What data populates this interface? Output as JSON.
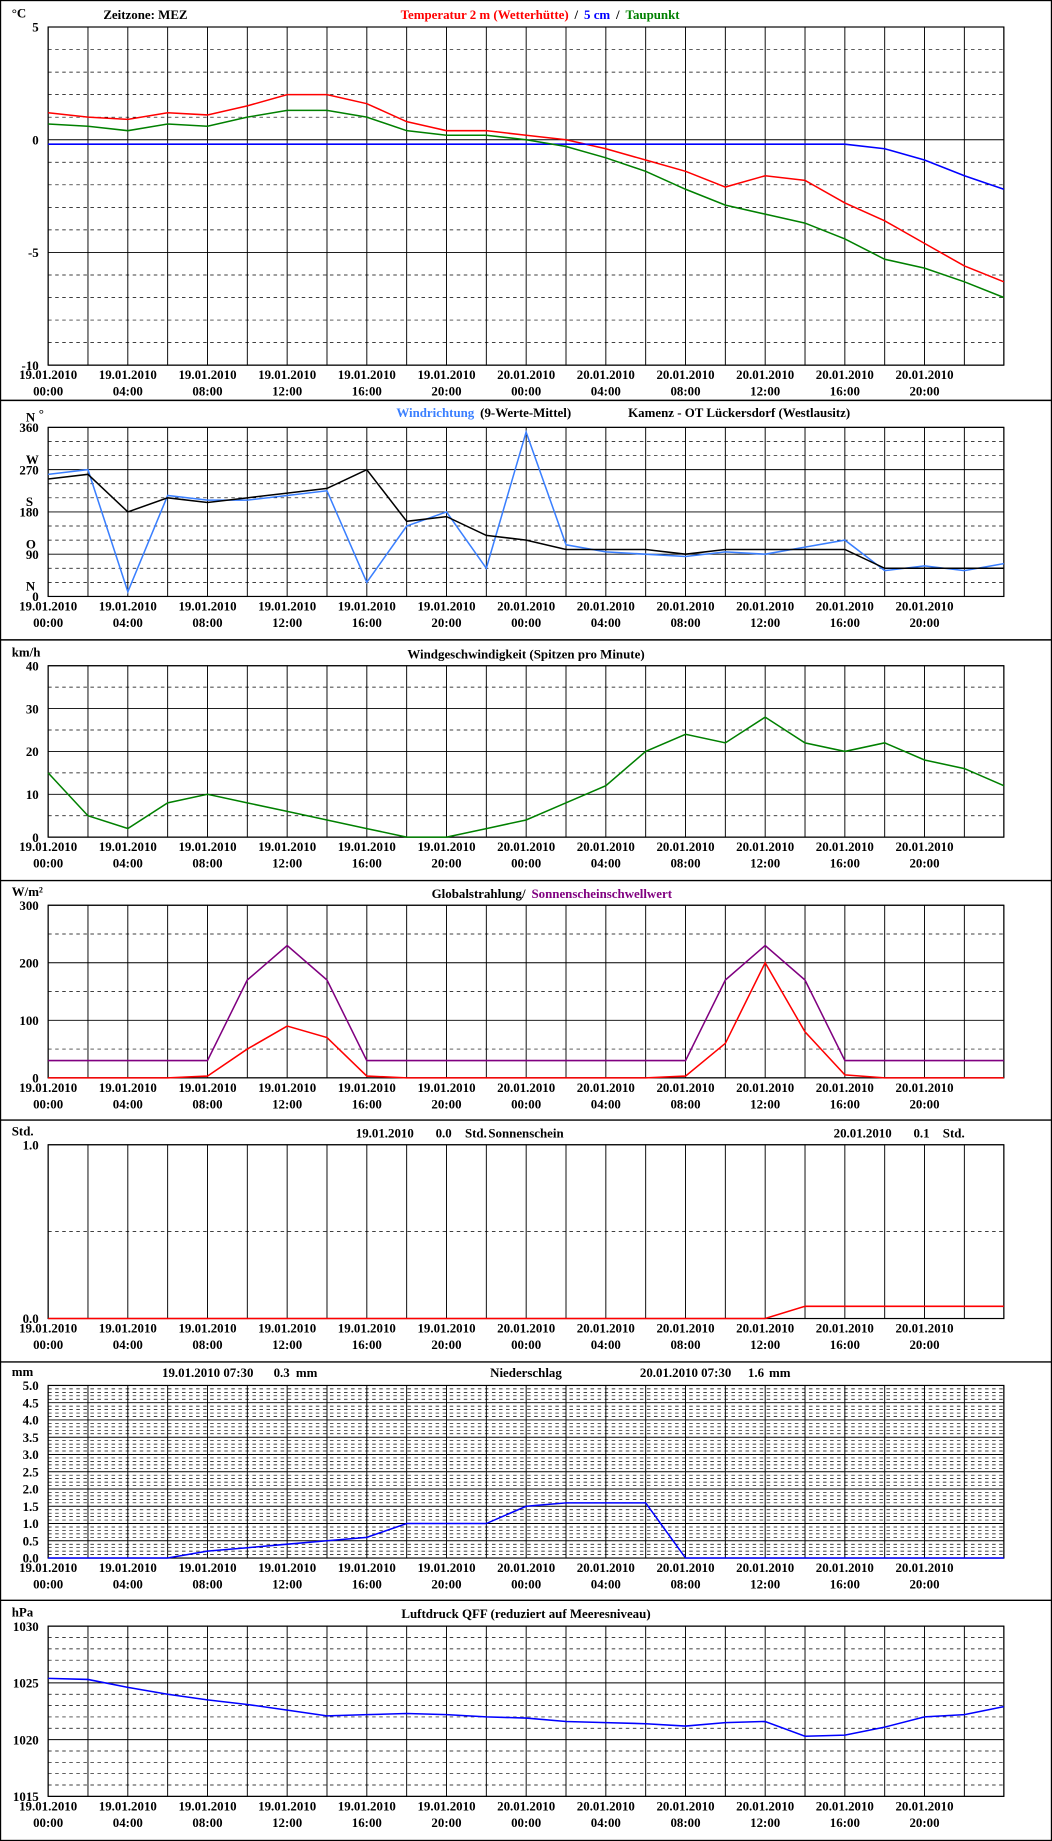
{
  "chart_data": [
    {
      "type": "line",
      "unit": "°C",
      "annotations": [
        "Zeitzone: MEZ"
      ],
      "legend_separator": "/",
      "x": [
        "19.01.2010 00:00",
        "19.01.2010 02:00",
        "19.01.2010 04:00",
        "19.01.2010 06:00",
        "19.01.2010 08:00",
        "19.01.2010 10:00",
        "19.01.2010 12:00",
        "19.01.2010 14:00",
        "19.01.2010 16:00",
        "19.01.2010 18:00",
        "19.01.2010 20:00",
        "19.01.2010 22:00",
        "20.01.2010 00:00",
        "20.01.2010 02:00",
        "20.01.2010 04:00",
        "20.01.2010 06:00",
        "20.01.2010 08:00",
        "20.01.2010 10:00",
        "20.01.2010 12:00",
        "20.01.2010 14:00",
        "20.01.2010 16:00",
        "20.01.2010 18:00",
        "20.01.2010 20:00",
        "20.01.2010 22:00",
        "20.01.2010 23:59"
      ],
      "xlim": [
        "19.01.2010 00:00",
        "20.01.2010 23:59"
      ],
      "xticks": [
        "19.01.2010 00:00",
        "19.01.2010 04:00",
        "19.01.2010 08:00",
        "19.01.2010 12:00",
        "19.01.2010 16:00",
        "19.01.2010 20:00",
        "20.01.2010 00:00",
        "20.01.2010 04:00",
        "20.01.2010 08:00",
        "20.01.2010 12:00",
        "20.01.2010 16:00",
        "20.01.2010 20:00"
      ],
      "ylim": [
        -10,
        5
      ],
      "yticks": [
        -10,
        -5,
        0,
        5
      ],
      "yminor": [
        -9,
        -8,
        -7,
        -6,
        -4,
        -3,
        -2,
        -1,
        1,
        2,
        3,
        4
      ],
      "grid": true,
      "series": [
        {
          "name": "Temperatur 2 m (Wetterhütte)",
          "color": "#ff0000",
          "values": [
            1.2,
            1.0,
            0.9,
            1.2,
            1.1,
            1.5,
            2.0,
            2.0,
            1.6,
            0.8,
            0.4,
            0.4,
            0.2,
            0,
            -0.4,
            -0.9,
            -1.4,
            -2.1,
            -1.6,
            -1.8,
            -2.8,
            -3.6,
            -4.6,
            -5.6,
            -6.3
          ]
        },
        {
          "name": "5 cm",
          "color": "#0000ff",
          "values": [
            -0.2,
            -0.2,
            -0.2,
            -0.2,
            -0.2,
            -0.2,
            -0.2,
            -0.2,
            -0.2,
            -0.2,
            -0.2,
            -0.2,
            -0.2,
            -0.2,
            -0.2,
            -0.2,
            -0.2,
            -0.2,
            -0.2,
            -0.2,
            -0.2,
            -0.4,
            -0.9,
            -1.6,
            -2.2
          ]
        },
        {
          "name": "Taupunkt",
          "color": "#008000",
          "values": [
            0.7,
            0.6,
            0.4,
            0.7,
            0.6,
            1.0,
            1.3,
            1.3,
            1.0,
            0.4,
            0.2,
            0.2,
            0,
            -0.3,
            -0.8,
            -1.4,
            -2.2,
            -2.9,
            -3.3,
            -3.7,
            -4.4,
            -5.3,
            -5.7,
            -6.3,
            -7.0
          ]
        }
      ]
    },
    {
      "type": "line",
      "unit": "°",
      "annotations": [
        "Kamenz - OT Lückersdorf (Westlausitz)"
      ],
      "compass_labels": [
        "N",
        "O",
        "S",
        "W",
        "N"
      ],
      "x": [
        "19.01.2010 00:00",
        "19.01.2010 02:00",
        "19.01.2010 04:00",
        "19.01.2010 06:00",
        "19.01.2010 08:00",
        "19.01.2010 10:00",
        "19.01.2010 12:00",
        "19.01.2010 14:00",
        "19.01.2010 16:00",
        "19.01.2010 18:00",
        "19.01.2010 20:00",
        "19.01.2010 22:00",
        "20.01.2010 00:00",
        "20.01.2010 02:00",
        "20.01.2010 04:00",
        "20.01.2010 06:00",
        "20.01.2010 08:00",
        "20.01.2010 10:00",
        "20.01.2010 12:00",
        "20.01.2010 14:00",
        "20.01.2010 16:00",
        "20.01.2010 18:00",
        "20.01.2010 20:00",
        "20.01.2010 22:00",
        "20.01.2010 23:59"
      ],
      "xlim": [
        "19.01.2010 00:00",
        "20.01.2010 23:59"
      ],
      "xticks": [
        "19.01.2010 00:00",
        "19.01.2010 04:00",
        "19.01.2010 08:00",
        "19.01.2010 12:00",
        "19.01.2010 16:00",
        "19.01.2010 20:00",
        "20.01.2010 00:00",
        "20.01.2010 04:00",
        "20.01.2010 08:00",
        "20.01.2010 12:00",
        "20.01.2010 16:00",
        "20.01.2010 20:00"
      ],
      "ylim": [
        0,
        360
      ],
      "yticks": [
        0,
        90,
        180,
        270,
        360
      ],
      "yminor": [
        30,
        60,
        120,
        150,
        210,
        240,
        300,
        330
      ],
      "grid": true,
      "series": [
        {
          "name": "Windrichtung",
          "color": "#3a7fff",
          "values": [
            260,
            270,
            10,
            215,
            205,
            205,
            215,
            225,
            30,
            150,
            180,
            60,
            350,
            110,
            95,
            90,
            85,
            95,
            90,
            105,
            120,
            55,
            65,
            55,
            70
          ]
        },
        {
          "name": "(9-Werte-Mittel)",
          "color": "#000000",
          "values": [
            250,
            260,
            180,
            210,
            200,
            210,
            220,
            230,
            270,
            160,
            170,
            130,
            120,
            100,
            100,
            100,
            90,
            100,
            100,
            100,
            100,
            60,
            60,
            60,
            60
          ]
        }
      ]
    },
    {
      "type": "line",
      "unit": "km/h",
      "title": "Windgeschwindigkeit (Spitzen pro Minute)",
      "x": [
        "19.01.2010 00:00",
        "19.01.2010 02:00",
        "19.01.2010 04:00",
        "19.01.2010 06:00",
        "19.01.2010 08:00",
        "19.01.2010 10:00",
        "19.01.2010 12:00",
        "19.01.2010 14:00",
        "19.01.2010 16:00",
        "19.01.2010 18:00",
        "19.01.2010 20:00",
        "19.01.2010 22:00",
        "20.01.2010 00:00",
        "20.01.2010 02:00",
        "20.01.2010 04:00",
        "20.01.2010 06:00",
        "20.01.2010 08:00",
        "20.01.2010 10:00",
        "20.01.2010 12:00",
        "20.01.2010 14:00",
        "20.01.2010 16:00",
        "20.01.2010 18:00",
        "20.01.2010 20:00",
        "20.01.2010 22:00",
        "20.01.2010 23:59"
      ],
      "xlim": [
        "19.01.2010 00:00",
        "20.01.2010 23:59"
      ],
      "xticks": [
        "19.01.2010 00:00",
        "19.01.2010 04:00",
        "19.01.2010 08:00",
        "19.01.2010 12:00",
        "19.01.2010 16:00",
        "19.01.2010 20:00",
        "20.01.2010 00:00",
        "20.01.2010 04:00",
        "20.01.2010 08:00",
        "20.01.2010 12:00",
        "20.01.2010 16:00",
        "20.01.2010 20:00"
      ],
      "ylim": [
        0,
        40
      ],
      "yticks": [
        0,
        10,
        20,
        30,
        40
      ],
      "yminor": [
        5,
        15,
        25,
        35
      ],
      "grid": true,
      "series": [
        {
          "color": "#008000",
          "values": [
            15,
            5,
            2,
            8,
            10,
            8,
            6,
            4,
            2,
            0,
            0,
            2,
            4,
            8,
            12,
            20,
            24,
            22,
            28,
            22,
            20,
            22,
            18,
            16,
            12
          ]
        }
      ]
    },
    {
      "type": "line",
      "unit": "W/m²",
      "x": [
        "19.01.2010 00:00",
        "19.01.2010 02:00",
        "19.01.2010 04:00",
        "19.01.2010 06:00",
        "19.01.2010 08:00",
        "19.01.2010 10:00",
        "19.01.2010 12:00",
        "19.01.2010 14:00",
        "19.01.2010 16:00",
        "19.01.2010 18:00",
        "19.01.2010 20:00",
        "19.01.2010 22:00",
        "20.01.2010 00:00",
        "20.01.2010 02:00",
        "20.01.2010 04:00",
        "20.01.2010 06:00",
        "20.01.2010 08:00",
        "20.01.2010 10:00",
        "20.01.2010 12:00",
        "20.01.2010 14:00",
        "20.01.2010 16:00",
        "20.01.2010 18:00",
        "20.01.2010 20:00",
        "20.01.2010 22:00",
        "20.01.2010 23:59"
      ],
      "xlim": [
        "19.01.2010 00:00",
        "20.01.2010 23:59"
      ],
      "xticks": [
        "19.01.2010 00:00",
        "19.01.2010 04:00",
        "19.01.2010 08:00",
        "19.01.2010 12:00",
        "19.01.2010 16:00",
        "19.01.2010 20:00",
        "20.01.2010 00:00",
        "20.01.2010 04:00",
        "20.01.2010 08:00",
        "20.01.2010 12:00",
        "20.01.2010 16:00",
        "20.01.2010 20:00"
      ],
      "ylim": [
        0,
        300
      ],
      "yticks": [
        0,
        100,
        200,
        300
      ],
      "yminor": [
        50,
        150,
        250
      ],
      "grid": true,
      "series": [
        {
          "name": "Globalstrahlung/",
          "color": "#ff0000",
          "legend_color": "#000000",
          "values": [
            0,
            0,
            0,
            0,
            3,
            50,
            90,
            70,
            3,
            0,
            0,
            0,
            0,
            0,
            0,
            0,
            3,
            60,
            200,
            80,
            5,
            0,
            0,
            0,
            0
          ]
        },
        {
          "name": "Sonnenscheinschwellwert",
          "color": "#800080",
          "values": [
            30,
            30,
            30,
            30,
            30,
            170,
            230,
            170,
            30,
            30,
            30,
            30,
            30,
            30,
            30,
            30,
            30,
            170,
            230,
            170,
            30,
            30,
            30,
            30,
            30
          ]
        }
      ]
    },
    {
      "type": "line",
      "unit": "Std.",
      "title": "Sonnenschein",
      "annotations": [
        "19.01.2010",
        "0.0",
        "Std.",
        "20.01.2010",
        "0.1",
        "Std."
      ],
      "x": [
        "19.01.2010 00:00",
        "19.01.2010 02:00",
        "19.01.2010 04:00",
        "19.01.2010 06:00",
        "19.01.2010 08:00",
        "19.01.2010 10:00",
        "19.01.2010 12:00",
        "19.01.2010 14:00",
        "19.01.2010 16:00",
        "19.01.2010 18:00",
        "19.01.2010 20:00",
        "19.01.2010 22:00",
        "20.01.2010 00:00",
        "20.01.2010 02:00",
        "20.01.2010 04:00",
        "20.01.2010 06:00",
        "20.01.2010 08:00",
        "20.01.2010 10:00",
        "20.01.2010 12:00",
        "20.01.2010 14:00",
        "20.01.2010 16:00",
        "20.01.2010 18:00",
        "20.01.2010 20:00",
        "20.01.2010 22:00",
        "20.01.2010 23:59"
      ],
      "xlim": [
        "19.01.2010 00:00",
        "20.01.2010 23:59"
      ],
      "xticks": [
        "19.01.2010 00:00",
        "19.01.2010 04:00",
        "19.01.2010 08:00",
        "19.01.2010 12:00",
        "19.01.2010 16:00",
        "19.01.2010 20:00",
        "20.01.2010 00:00",
        "20.01.2010 04:00",
        "20.01.2010 08:00",
        "20.01.2010 12:00",
        "20.01.2010 16:00",
        "20.01.2010 20:00"
      ],
      "ylim": [
        0,
        1
      ],
      "yticks": [
        {
          "value": 0,
          "label": "0.0"
        },
        {
          "value": 1,
          "label": "1.0"
        }
      ],
      "yminor": [
        0.5
      ],
      "grid": true,
      "series": [
        {
          "color": "#ff0000",
          "values": [
            0,
            0,
            0,
            0,
            0,
            0,
            0,
            0,
            0,
            0,
            0,
            0,
            0,
            0,
            0,
            0,
            0,
            0,
            0,
            0.07,
            0.07,
            0.07,
            0.07,
            0.07,
            0.07
          ]
        }
      ]
    },
    {
      "type": "line",
      "unit": "mm",
      "title": "Niederschlag",
      "annotations": [
        "19.01.2010 07:30",
        "0.3",
        "mm",
        "20.01.2010 07:30",
        "1.6",
        "mm"
      ],
      "x": [
        "19.01.2010 00:00",
        "19.01.2010 02:00",
        "19.01.2010 04:00",
        "19.01.2010 06:00",
        "19.01.2010 08:00",
        "19.01.2010 10:00",
        "19.01.2010 12:00",
        "19.01.2010 14:00",
        "19.01.2010 16:00",
        "19.01.2010 18:00",
        "19.01.2010 20:00",
        "19.01.2010 22:00",
        "20.01.2010 00:00",
        "20.01.2010 02:00",
        "20.01.2010 04:00",
        "20.01.2010 06:00",
        "20.01.2010 08:00",
        "20.01.2010 10:00",
        "20.01.2010 12:00",
        "20.01.2010 14:00",
        "20.01.2010 16:00",
        "20.01.2010 18:00",
        "20.01.2010 20:00",
        "20.01.2010 22:00",
        "20.01.2010 23:59"
      ],
      "xlim": [
        "19.01.2010 00:00",
        "20.01.2010 23:59"
      ],
      "xticks": [
        "19.01.2010 00:00",
        "19.01.2010 04:00",
        "19.01.2010 08:00",
        "19.01.2010 12:00",
        "19.01.2010 16:00",
        "19.01.2010 20:00",
        "20.01.2010 00:00",
        "20.01.2010 04:00",
        "20.01.2010 08:00",
        "20.01.2010 12:00",
        "20.01.2010 16:00",
        "20.01.2010 20:00"
      ],
      "ylim": [
        0,
        5
      ],
      "yticks": [
        {
          "value": 0,
          "label": "0.0"
        },
        0.5,
        {
          "value": 1,
          "label": "1.0"
        },
        1.5,
        {
          "value": 2,
          "label": "2.0"
        },
        2.5,
        {
          "value": 3,
          "label": "3.0"
        },
        3.5,
        {
          "value": 4,
          "label": "4.0"
        },
        4.5,
        {
          "value": 5,
          "label": "5.0"
        }
      ],
      "yminor": [
        0.1,
        0.2,
        0.3,
        0.4,
        0.6,
        0.7,
        0.8,
        0.9,
        1.1,
        1.2,
        1.3,
        1.4,
        1.6,
        1.7,
        1.8,
        1.9,
        2.1,
        2.2,
        2.3,
        2.4,
        2.6,
        2.7,
        2.8,
        2.9,
        3.1,
        3.2,
        3.3,
        3.4,
        3.6,
        3.7,
        3.8,
        3.9,
        4.1,
        4.2,
        4.3,
        4.4,
        4.6,
        4.7,
        4.8,
        4.9
      ],
      "grid": true,
      "series": [
        {
          "color": "#0000ff",
          "values": [
            0,
            0,
            0,
            0,
            0.2,
            0.3,
            0.4,
            0.5,
            0.6,
            1.0,
            1.0,
            1.0,
            1.5,
            1.6,
            1.6,
            1.6,
            0,
            0,
            0,
            0,
            0,
            0,
            0,
            0,
            0
          ]
        }
      ]
    },
    {
      "type": "line",
      "unit": "hPa",
      "title": "Luftdruck QFF (reduziert auf Meeresniveau)",
      "x": [
        "19.01.2010 00:00",
        "19.01.2010 02:00",
        "19.01.2010 04:00",
        "19.01.2010 06:00",
        "19.01.2010 08:00",
        "19.01.2010 10:00",
        "19.01.2010 12:00",
        "19.01.2010 14:00",
        "19.01.2010 16:00",
        "19.01.2010 18:00",
        "19.01.2010 20:00",
        "19.01.2010 22:00",
        "20.01.2010 00:00",
        "20.01.2010 02:00",
        "20.01.2010 04:00",
        "20.01.2010 06:00",
        "20.01.2010 08:00",
        "20.01.2010 10:00",
        "20.01.2010 12:00",
        "20.01.2010 14:00",
        "20.01.2010 16:00",
        "20.01.2010 18:00",
        "20.01.2010 20:00",
        "20.01.2010 22:00",
        "20.01.2010 23:59"
      ],
      "xlim": [
        "19.01.2010 00:00",
        "20.01.2010 23:59"
      ],
      "xticks": [
        "19.01.2010 00:00",
        "19.01.2010 04:00",
        "19.01.2010 08:00",
        "19.01.2010 12:00",
        "19.01.2010 16:00",
        "19.01.2010 20:00",
        "20.01.2010 00:00",
        "20.01.2010 04:00",
        "20.01.2010 08:00",
        "20.01.2010 12:00",
        "20.01.2010 16:00",
        "20.01.2010 20:00"
      ],
      "ylim": [
        1015,
        1030
      ],
      "yticks": [
        1015,
        1020,
        1025,
        1030
      ],
      "yminor": [
        1016,
        1017,
        1018,
        1019,
        1021,
        1022,
        1023,
        1024,
        1026,
        1027,
        1028,
        1029
      ],
      "grid": true,
      "series": [
        {
          "color": "#0000ff",
          "values": [
            1025.4,
            1025.3,
            1024.6,
            1024,
            1023.5,
            1023.1,
            1022.6,
            1022.1,
            1022.2,
            1022.3,
            1022.2,
            1022.0,
            1021.9,
            1021.6,
            1021.5,
            1021.4,
            1021.2,
            1021.5,
            1021.6,
            1020.3,
            1020.4,
            1021.1,
            1022,
            1022.2,
            1022.9
          ]
        }
      ]
    }
  ]
}
